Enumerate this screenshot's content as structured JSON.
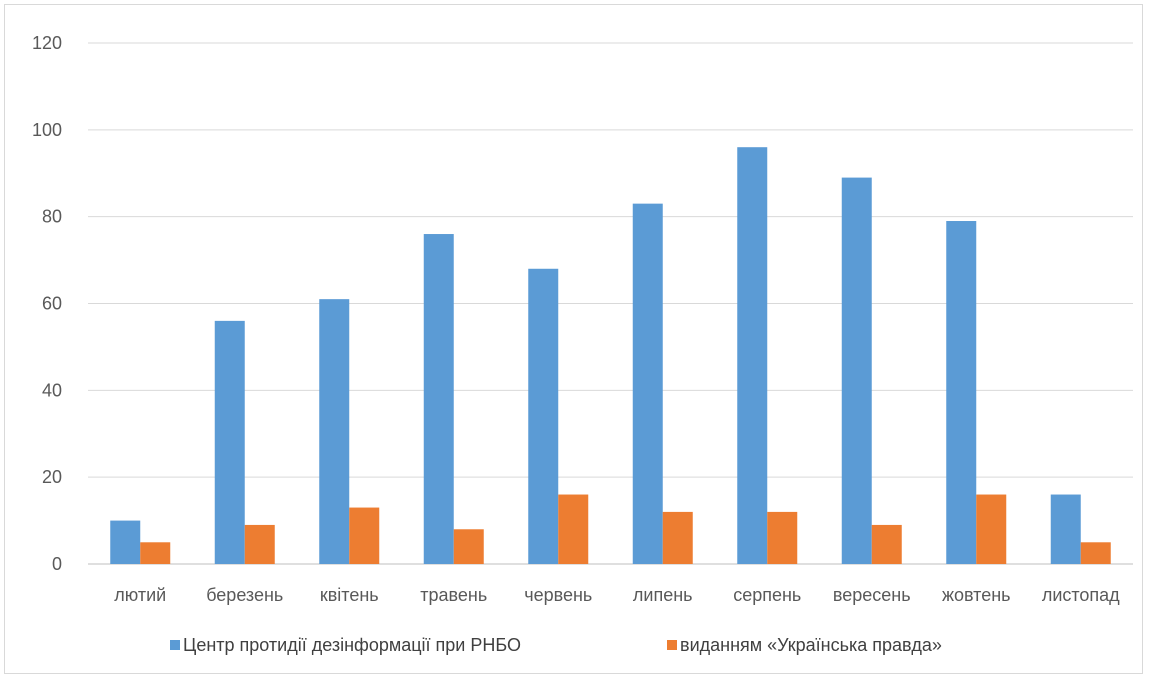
{
  "chart_data": {
    "type": "bar",
    "title": "",
    "xlabel": "",
    "ylabel": "",
    "categories": [
      "лютий",
      "березень",
      "квітень",
      "травень",
      "червень",
      "липень",
      "серпень",
      "вересень",
      "жовтень",
      "листопад"
    ],
    "series": [
      {
        "name": "Центр протидії дезінформації при РНБО",
        "color": "#5B9BD5",
        "values": [
          10,
          56,
          61,
          76,
          68,
          83,
          96,
          89,
          79,
          16
        ]
      },
      {
        "name": "виданням «Українська правда»",
        "color": "#ED7D31",
        "values": [
          5,
          9,
          13,
          8,
          16,
          12,
          12,
          9,
          16,
          5
        ]
      }
    ],
    "ylim": [
      0,
      120
    ],
    "yticks": [
      0,
      20,
      40,
      60,
      80,
      100,
      120
    ],
    "grid": true,
    "legend_position": "bottom"
  }
}
